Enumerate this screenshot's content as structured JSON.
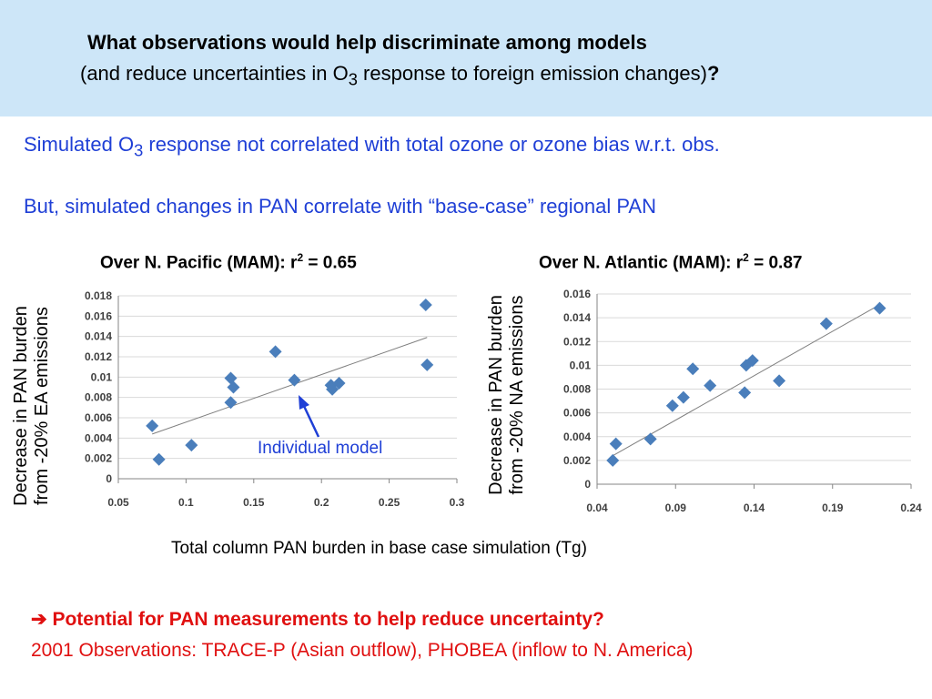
{
  "header": {
    "title": "What observations would help discriminate among models",
    "subtitle_before": "(and reduce uncertainties in O",
    "subtitle_sub": "3",
    "subtitle_after": " response to foreign emission changes)",
    "subtitle_q": "?"
  },
  "bullets": {
    "line1_before": "Simulated O",
    "line1_sub": "3",
    "line1_after": " response not correlated with total ozone or ozone bias w.r.t. obs.",
    "line2": "But, simulated changes in PAN correlate with “base-case” regional PAN"
  },
  "shared_xlabel": "Total column PAN burden in base case simulation (Tg)",
  "annotation": "Individual model",
  "conclusion": {
    "arrow": "➔",
    "potential": " Potential for PAN measurements to help reduce uncertainty?",
    "observations": "2001 Observations: TRACE-P (Asian outflow), PHOBEA (inflow to N. America)"
  },
  "colors": {
    "banner": "#cde6f8",
    "bullet_blue": "#1f3fd6",
    "conclusion_red": "#e01010",
    "marker": "#4a7ebb",
    "trend": "#7f7f7f"
  },
  "chart_data": [
    {
      "type": "scatter",
      "title_before": "Over N. Pacific (MAM):  r",
      "title_sup": "2",
      "title_after": " = 0.65",
      "ylabel_line1": "Decrease in PAN burden",
      "ylabel_line2": "from -20% EA emissions",
      "xlim": [
        0.05,
        0.3
      ],
      "ylim": [
        0,
        0.018
      ],
      "xticks": [
        "0.05",
        "0.1",
        "0.15",
        "0.2",
        "0.25",
        "0.3"
      ],
      "yticks": [
        "0",
        "0.002",
        "0.004",
        "0.006",
        "0.008",
        "0.01",
        "0.012",
        "0.014",
        "0.016",
        "0.018"
      ],
      "grid": "horizontal",
      "x": [
        0.075,
        0.08,
        0.104,
        0.133,
        0.133,
        0.135,
        0.166,
        0.18,
        0.207,
        0.208,
        0.213,
        0.277,
        0.278
      ],
      "y": [
        0.0052,
        0.0019,
        0.0033,
        0.0075,
        0.0099,
        0.009,
        0.0125,
        0.0097,
        0.0092,
        0.0088,
        0.0094,
        0.0171,
        0.0112
      ],
      "trendline": {
        "x": [
          0.075,
          0.278
        ],
        "y": [
          0.0044,
          0.0139
        ]
      }
    },
    {
      "type": "scatter",
      "title_before": "Over N. Atlantic (MAM):  r",
      "title_sup": "2",
      "title_after": " = 0.87",
      "ylabel_line1": "Decrease in PAN burden",
      "ylabel_line2": "from -20% NA emissions",
      "xlim": [
        0.04,
        0.24
      ],
      "ylim": [
        0,
        0.016
      ],
      "xticks": [
        "0.04",
        "0.09",
        "0.14",
        "0.19",
        "0.24"
      ],
      "yticks": [
        "0",
        "0.002",
        "0.004",
        "0.006",
        "0.008",
        "0.01",
        "0.012",
        "0.014",
        "0.016"
      ],
      "grid": "horizontal",
      "x": [
        0.05,
        0.052,
        0.074,
        0.088,
        0.095,
        0.101,
        0.112,
        0.134,
        0.135,
        0.139,
        0.156,
        0.186,
        0.22
      ],
      "y": [
        0.002,
        0.0034,
        0.0038,
        0.0066,
        0.0073,
        0.0097,
        0.0083,
        0.0077,
        0.01,
        0.0104,
        0.0087,
        0.0135,
        0.0148
      ],
      "trendline": {
        "x": [
          0.05,
          0.22
        ],
        "y": [
          0.0024,
          0.0151
        ]
      }
    }
  ]
}
